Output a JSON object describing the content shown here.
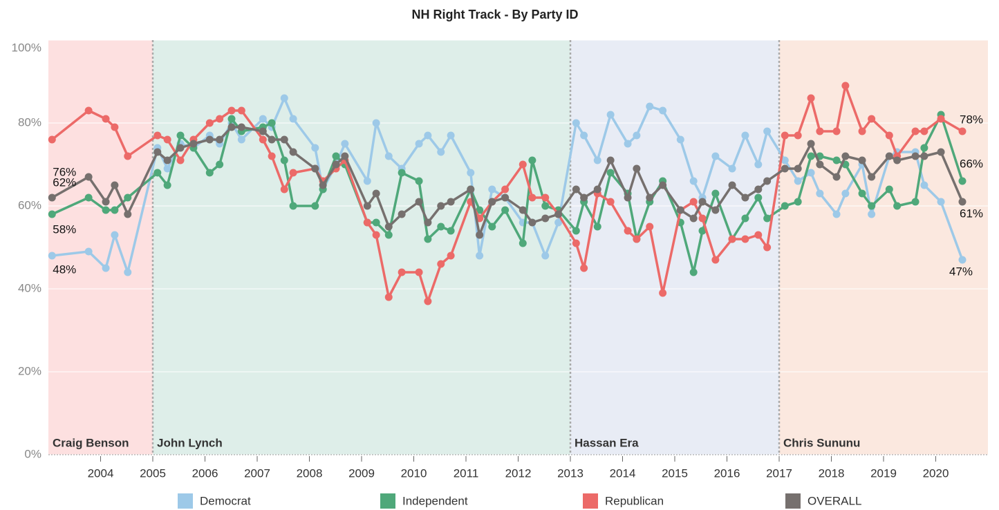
{
  "chart_data": {
    "type": "line",
    "title": "NH Right Track - By Party ID",
    "x": [
      2003.07,
      2003.77,
      2004.1,
      2004.27,
      2004.52,
      2005.09,
      2005.28,
      2005.53,
      2005.78,
      2006.09,
      2006.28,
      2006.51,
      2006.7,
      2007.11,
      2007.28,
      2007.52,
      2007.69,
      2008.11,
      2008.26,
      2008.51,
      2008.68,
      2009.11,
      2009.28,
      2009.52,
      2009.77,
      2010.1,
      2010.27,
      2010.52,
      2010.71,
      2011.09,
      2011.26,
      2011.5,
      2011.75,
      2012.09,
      2012.27,
      2012.52,
      2012.77,
      2013.11,
      2013.26,
      2013.52,
      2013.77,
      2014.1,
      2014.27,
      2014.52,
      2014.77,
      2015.11,
      2015.36,
      2015.53,
      2015.78,
      2016.1,
      2016.35,
      2016.6,
      2016.77,
      2017.11,
      2017.36,
      2017.61,
      2017.78,
      2018.1,
      2018.27,
      2018.59,
      2018.77,
      2019.11,
      2019.26,
      2019.61,
      2019.78,
      2020.1,
      2020.51
    ],
    "series": [
      {
        "name": "Democrat",
        "color": "#9dc9e8",
        "values": [
          48,
          49,
          45,
          53,
          44,
          74,
          69,
          75,
          74,
          77,
          75,
          80,
          76,
          81,
          79,
          86,
          81,
          74,
          64,
          70,
          75,
          66,
          80,
          72,
          69,
          75,
          77,
          73,
          77,
          68,
          48,
          64,
          62,
          56,
          56,
          48,
          56,
          80,
          77,
          71,
          82,
          75,
          77,
          84,
          83,
          76,
          66,
          62,
          72,
          69,
          77,
          70,
          78,
          71,
          66,
          68,
          63,
          58,
          63,
          70,
          58,
          72,
          73,
          73,
          65,
          61,
          47
        ],
        "value_labels": [
          "48%",
          null,
          null,
          null,
          null,
          null,
          null,
          null,
          null,
          null,
          null,
          null,
          null,
          null,
          null,
          null,
          null,
          null,
          null,
          null,
          null,
          null,
          null,
          null,
          null,
          null,
          null,
          null,
          null,
          null,
          null,
          null,
          null,
          null,
          null,
          null,
          null,
          null,
          null,
          null,
          null,
          null,
          null,
          null,
          null,
          null,
          null,
          null,
          null,
          null,
          null,
          null,
          null,
          null,
          null,
          null,
          null,
          null,
          null,
          null,
          null,
          null,
          null,
          null,
          null,
          null,
          "47%"
        ]
      },
      {
        "name": "Independent",
        "color": "#4fa87a",
        "values": [
          58,
          62,
          59,
          59,
          62,
          68,
          65,
          77,
          74,
          68,
          70,
          81,
          78,
          79,
          80,
          71,
          60,
          60,
          64,
          72,
          70,
          56,
          56,
          53,
          68,
          66,
          52,
          55,
          54,
          64,
          59,
          55,
          59,
          51,
          71,
          60,
          59,
          54,
          61,
          55,
          68,
          63,
          52,
          61,
          66,
          56,
          44,
          54,
          63,
          52,
          57,
          62,
          57,
          60,
          61,
          72,
          72,
          71,
          70,
          63,
          60,
          64,
          60,
          61,
          74,
          82,
          66
        ],
        "value_labels": [
          "58%",
          null,
          null,
          null,
          null,
          null,
          null,
          null,
          null,
          null,
          null,
          null,
          null,
          null,
          null,
          null,
          null,
          null,
          null,
          null,
          null,
          null,
          null,
          null,
          null,
          null,
          null,
          null,
          null,
          null,
          null,
          null,
          null,
          null,
          null,
          null,
          null,
          null,
          null,
          null,
          null,
          null,
          null,
          null,
          null,
          null,
          null,
          null,
          null,
          null,
          null,
          null,
          null,
          null,
          null,
          null,
          null,
          null,
          null,
          null,
          null,
          null,
          null,
          null,
          null,
          null,
          "66%"
        ]
      },
      {
        "name": "Republican",
        "color": "#ec6a68",
        "values": [
          76,
          83,
          81,
          79,
          72,
          77,
          76,
          71,
          76,
          80,
          81,
          83,
          83,
          76,
          72,
          64,
          68,
          69,
          66,
          69,
          71,
          56,
          53,
          38,
          44,
          44,
          37,
          46,
          48,
          61,
          57,
          61,
          64,
          70,
          62,
          62,
          58,
          51,
          45,
          63,
          61,
          54,
          52,
          55,
          39,
          59,
          61,
          57,
          47,
          52,
          52,
          53,
          50,
          77,
          77,
          86,
          78,
          78,
          89,
          78,
          81,
          77,
          72,
          78,
          78,
          81,
          78
        ],
        "value_labels": [
          "76%",
          null,
          null,
          null,
          null,
          null,
          null,
          null,
          null,
          null,
          null,
          null,
          null,
          null,
          null,
          null,
          null,
          null,
          null,
          null,
          null,
          null,
          null,
          null,
          null,
          null,
          null,
          null,
          null,
          null,
          null,
          null,
          null,
          null,
          null,
          null,
          null,
          null,
          null,
          null,
          null,
          null,
          null,
          null,
          null,
          null,
          null,
          null,
          null,
          null,
          null,
          null,
          null,
          null,
          null,
          null,
          null,
          null,
          null,
          null,
          null,
          null,
          null,
          null,
          null,
          null,
          "78%"
        ]
      },
      {
        "name": "OVERALL",
        "color": "#76706e",
        "values": [
          62,
          67,
          61,
          65,
          58,
          73,
          71,
          74,
          75,
          76,
          76,
          79,
          79,
          78,
          76,
          76,
          73,
          69,
          65,
          70,
          72,
          60,
          63,
          55,
          58,
          61,
          56,
          60,
          61,
          64,
          53,
          61,
          62,
          59,
          56,
          57,
          58,
          64,
          62,
          64,
          71,
          62,
          69,
          62,
          65,
          59,
          57,
          61,
          59,
          65,
          62,
          64,
          66,
          69,
          69,
          75,
          70,
          67,
          72,
          71,
          67,
          72,
          71,
          72,
          72,
          73,
          61
        ],
        "value_labels": [
          "62%",
          null,
          null,
          null,
          null,
          null,
          null,
          null,
          null,
          null,
          null,
          null,
          null,
          null,
          null,
          null,
          null,
          null,
          null,
          null,
          null,
          null,
          null,
          null,
          null,
          null,
          null,
          null,
          null,
          null,
          null,
          null,
          null,
          null,
          null,
          null,
          null,
          null,
          null,
          null,
          null,
          null,
          null,
          null,
          null,
          null,
          null,
          null,
          null,
          null,
          null,
          null,
          null,
          null,
          null,
          null,
          null,
          null,
          null,
          null,
          null,
          null,
          null,
          null,
          null,
          null,
          "61%"
        ]
      }
    ],
    "eras": [
      {
        "label": "Craig Benson",
        "start": 2003,
        "end": 2005,
        "color": "#fde0e0"
      },
      {
        "label": "John Lynch",
        "start": 2005,
        "end": 2013,
        "color": "#deeee9"
      },
      {
        "label": "Hassan Era",
        "start": 2013,
        "end": 2017,
        "color": "#e8ecf5"
      },
      {
        "label": "Chris Sununu",
        "start": 2017,
        "end": 2021,
        "color": "#fbe8df"
      }
    ],
    "xlim": [
      2003,
      2021
    ],
    "ylim": [
      0,
      100
    ],
    "xticks": [
      2004,
      2005,
      2006,
      2007,
      2008,
      2009,
      2010,
      2011,
      2012,
      2013,
      2014,
      2015,
      2016,
      2017,
      2018,
      2019,
      2020
    ],
    "yticks": [
      {
        "value": 0,
        "label": "0%"
      },
      {
        "value": 20,
        "label": "20%"
      },
      {
        "value": 40,
        "label": "40%"
      },
      {
        "value": 60,
        "label": "60%"
      },
      {
        "value": 80,
        "label": "80%"
      },
      {
        "value": 100,
        "label": "100%"
      }
    ],
    "grid": true,
    "legend": "bottom"
  }
}
